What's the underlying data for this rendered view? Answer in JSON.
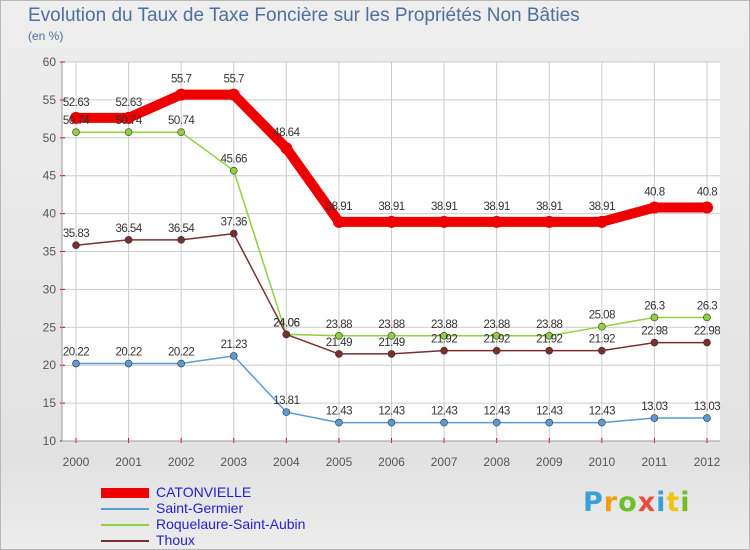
{
  "colors": {
    "title": "#4f6f9e",
    "axis_text": "#555555",
    "grid": "#cccccc",
    "tick": "#cc0000",
    "legend_text": "#2222cc"
  },
  "chart_data": {
    "type": "line",
    "title": "Evolution du Taux de Taxe Foncière sur les Propriétés Non Bâties",
    "ylabel": "(en %)",
    "xlabel": "",
    "ylim": [
      10,
      60
    ],
    "ytick_values": [
      10,
      15,
      20,
      25,
      30,
      35,
      40,
      45,
      50,
      55,
      60
    ],
    "ytick_labels": [
      "10",
      "15",
      "20",
      "25",
      "30",
      "35",
      "40",
      "45",
      "50",
      "55",
      "60"
    ],
    "grid": true,
    "categories": [
      "2000",
      "2001",
      "2002",
      "2003",
      "2004",
      "2005",
      "2006",
      "2007",
      "2008",
      "2009",
      "2010",
      "2011",
      "2012"
    ],
    "series": [
      {
        "name": "CATONVIELLE",
        "color": "#ee0000",
        "values": [
          52.63,
          52.63,
          55.7,
          55.7,
          48.64,
          38.91,
          38.91,
          38.91,
          38.91,
          38.91,
          38.91,
          40.8,
          40.8
        ],
        "labels": [
          "52.63",
          "52.63",
          "55.7",
          "55.7",
          "48.64",
          "38.91",
          "38.91",
          "38.91",
          "38.91",
          "38.91",
          "38.91",
          "40.8",
          "40.8"
        ]
      },
      {
        "name": "Saint-Germier",
        "color": "#5b9bd5",
        "values": [
          20.22,
          20.22,
          20.22,
          21.23,
          13.81,
          12.43,
          12.43,
          12.43,
          12.43,
          12.43,
          12.43,
          13.03,
          13.03
        ],
        "labels": [
          "20.22",
          "20.22",
          "20.22",
          "21.23",
          "13.81",
          "12.43",
          "12.43",
          "12.43",
          "12.43",
          "12.43",
          "12.43",
          "13.03",
          "13.03"
        ]
      },
      {
        "name": "Roquelaure-Saint-Aubin",
        "color": "#8fd13f",
        "values": [
          50.74,
          50.74,
          50.74,
          45.66,
          24.06,
          23.88,
          23.88,
          23.88,
          23.88,
          23.88,
          25.08,
          26.3,
          26.3
        ],
        "labels": [
          "50.74",
          "50.74",
          "50.74",
          "45.66",
          "24.06",
          "23.88",
          "23.88",
          "23.88",
          "23.88",
          "23.88",
          "25.08",
          "26.3",
          "26.3"
        ]
      },
      {
        "name": "Thoux",
        "color": "#7a2f2f",
        "values": [
          35.83,
          36.54,
          36.54,
          37.36,
          24.06,
          21.49,
          21.49,
          21.92,
          21.92,
          21.92,
          21.92,
          22.98,
          22.98
        ],
        "labels": [
          "35.83",
          "36.54",
          "36.54",
          "37.36",
          "24.06",
          "21.49",
          "21.49",
          "21.92",
          "21.92",
          "21.92",
          "21.92",
          "22.98",
          "22.98"
        ]
      }
    ]
  },
  "legend": {
    "items": [
      "CATONVIELLE",
      "Saint-Germier",
      "Roquelaure-Saint-Aubin",
      "Thoux"
    ]
  },
  "watermark": {
    "letters": [
      "P",
      "r",
      "o",
      "x",
      "i",
      "t",
      "i"
    ],
    "colors": [
      "#3aa0d8",
      "#f39c12",
      "#6fbf2a",
      "#e84c3d",
      "#3aa0d8",
      "#f1c40f",
      "#6fbf2a"
    ]
  }
}
